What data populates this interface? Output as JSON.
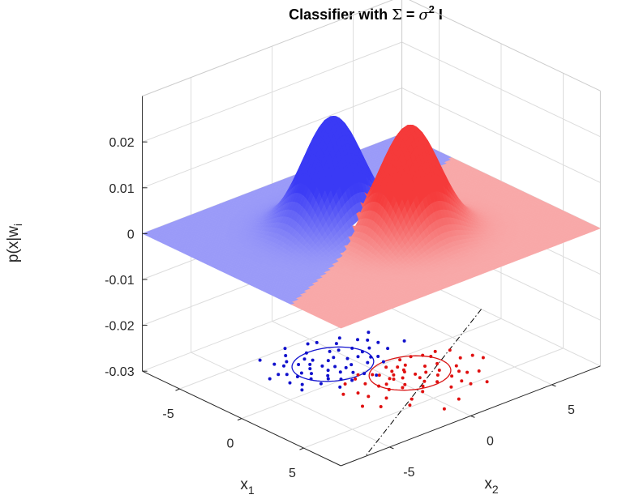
{
  "chart_data": {
    "type": "surface",
    "title_parts": {
      "prefix": "Classifier with ",
      "sigma_upper": "Σ",
      "equals": " = ",
      "sigma_lower": "σ",
      "superscript": "2",
      "suffix": " I"
    },
    "xlabel": {
      "base": "x",
      "sub": "1"
    },
    "ylabel": {
      "base": "x",
      "sub": "2"
    },
    "zlabel": {
      "base": "p(x|w",
      "sub": "i"
    },
    "xlim": [
      -8,
      8
    ],
    "ylim": [
      -8,
      8
    ],
    "zlim": [
      -0.03,
      0.03
    ],
    "x_ticks": [
      {
        "value": -5,
        "label": "-5"
      },
      {
        "value": 0,
        "label": "0"
      },
      {
        "value": 5,
        "label": "5"
      }
    ],
    "y_ticks": [
      {
        "value": -5,
        "label": "-5"
      },
      {
        "value": 0,
        "label": "0"
      },
      {
        "value": 5,
        "label": "5"
      }
    ],
    "z_ticks": [
      {
        "value": -0.03,
        "label": "-0.03"
      },
      {
        "value": -0.02,
        "label": "-0.02"
      },
      {
        "value": -0.01,
        "label": "-0.01"
      },
      {
        "value": 0,
        "label": "0"
      },
      {
        "value": 0.01,
        "label": "0.01"
      },
      {
        "value": 0.02,
        "label": "0.02"
      }
    ],
    "grid": true,
    "classes": [
      {
        "mean": [
          -1.8,
          -1.0
        ],
        "sigma": 1.5,
        "peak": 0.024,
        "surface_color": "#3a3af5",
        "light_color": "#9a9af8",
        "point_color": "#1010cc",
        "contour_color": "#1515d0"
      },
      {
        "mean": [
          1.8,
          1.0
        ],
        "sigma": 1.5,
        "peak": 0.024,
        "surface_color": "#f53a3a",
        "light_color": "#f8a8a8",
        "point_color": "#e01010",
        "contour_color": "#d81515"
      }
    ],
    "contour_radius": 2.0,
    "decision_boundary": {
      "from": [
        -1.6,
        8
      ],
      "to": [
        8,
        -6.5
      ],
      "style": "dash-dot",
      "color": "#000000"
    },
    "samples": {
      "blue": [
        [
          -3.4,
          -2.8
        ],
        [
          -2.9,
          -1.4
        ],
        [
          -3.1,
          -0.2
        ],
        [
          -2.2,
          -2.1
        ],
        [
          -1.4,
          -1.6
        ],
        [
          -2.6,
          0.8
        ],
        [
          -1.1,
          -0.4
        ],
        [
          -3.8,
          -1.1
        ],
        [
          -0.6,
          -2.2
        ],
        [
          -1.9,
          -3.1
        ],
        [
          -0.3,
          -0.9
        ],
        [
          -2.4,
          -0.5
        ],
        [
          -1.6,
          0.4
        ],
        [
          -3.2,
          1.6
        ],
        [
          -0.9,
          1.1
        ],
        [
          -4.3,
          -2.0
        ],
        [
          -2.8,
          -3.6
        ],
        [
          -1.2,
          -2.8
        ],
        [
          -0.1,
          -1.8
        ],
        [
          -2.0,
          1.4
        ],
        [
          -3.6,
          0.6
        ],
        [
          -1.5,
          -1.1
        ],
        [
          -4.6,
          -0.4
        ],
        [
          -0.7,
          0.3
        ],
        [
          -2.6,
          -1.8
        ],
        [
          -1.0,
          -3.5
        ],
        [
          -3.0,
          -2.2
        ],
        [
          -1.8,
          -0.1
        ],
        [
          -2.2,
          2.1
        ],
        [
          0.2,
          -0.6
        ],
        [
          -3.9,
          -3.0
        ],
        [
          -0.4,
          -2.8
        ],
        [
          -1.3,
          2.0
        ],
        [
          -2.9,
          0.2
        ],
        [
          -1.7,
          -2.4
        ],
        [
          -4.0,
          1.1
        ],
        [
          -0.8,
          -1.3
        ],
        [
          -2.3,
          -0.9
        ],
        [
          0.4,
          -1.5
        ],
        [
          -3.3,
          -1.6
        ],
        [
          -1.1,
          0.8
        ],
        [
          -2.7,
          -4.2
        ],
        [
          -5.0,
          -1.5
        ],
        [
          -2.0,
          -1.5
        ],
        [
          -0.5,
          -3.9
        ],
        [
          -1.4,
          3.1
        ],
        [
          -3.5,
          2.5
        ],
        [
          0.6,
          -2.4
        ],
        [
          -2.1,
          -2.7
        ],
        [
          -4.4,
          0.0
        ],
        [
          -1.0,
          -0.8
        ],
        [
          -0.2,
          0.9
        ],
        [
          -3.7,
          -2.4
        ],
        [
          -1.9,
          0.9
        ],
        [
          -2.5,
          -3.3
        ],
        [
          0.8,
          -0.3
        ],
        [
          -4.8,
          -3.2
        ],
        [
          -1.6,
          -3.8
        ],
        [
          -2.8,
          1.9
        ],
        [
          -0.9,
          -2.0
        ]
      ],
      "red": [
        [
          1.4,
          0.3
        ],
        [
          2.3,
          1.6
        ],
        [
          0.6,
          -0.4
        ],
        [
          3.1,
          0.9
        ],
        [
          1.9,
          2.6
        ],
        [
          2.6,
          -0.9
        ],
        [
          0.9,
          1.4
        ],
        [
          3.6,
          2.2
        ],
        [
          1.2,
          -1.3
        ],
        [
          2.0,
          0.4
        ],
        [
          4.0,
          0.1
        ],
        [
          0.3,
          2.2
        ],
        [
          2.8,
          3.1
        ],
        [
          1.6,
          -0.1
        ],
        [
          3.3,
          -1.6
        ],
        [
          0.4,
          0.6
        ],
        [
          2.1,
          1.1
        ],
        [
          4.6,
          1.4
        ],
        [
          1.0,
          2.9
        ],
        [
          2.5,
          -2.1
        ],
        [
          3.8,
          3.0
        ],
        [
          0.1,
          -0.9
        ],
        [
          1.8,
          -2.2
        ],
        [
          3.0,
          1.8
        ],
        [
          4.3,
          -0.8
        ],
        [
          1.3,
          1.0
        ],
        [
          2.6,
          2.2
        ],
        [
          0.7,
          3.4
        ],
        [
          3.5,
          0.5
        ],
        [
          1.9,
          -1.0
        ],
        [
          5.0,
          2.3
        ],
        [
          0.5,
          -2.0
        ],
        [
          2.2,
          3.8
        ],
        [
          3.9,
          -2.4
        ],
        [
          1.5,
          0.9
        ],
        [
          2.9,
          -0.3
        ],
        [
          0.2,
          1.6
        ],
        [
          4.1,
          3.5
        ],
        [
          1.7,
          2.0
        ],
        [
          3.2,
          -3.0
        ],
        [
          6.0,
          0.8
        ],
        [
          2.4,
          4.4
        ],
        [
          0.9,
          -0.2
        ],
        [
          4.8,
          -1.3
        ],
        [
          1.1,
          4.0
        ],
        [
          3.6,
          1.3
        ],
        [
          2.7,
          0.0
        ],
        [
          0.6,
          2.7
        ],
        [
          5.4,
          3.0
        ],
        [
          1.4,
          -2.8
        ],
        [
          2.0,
          -0.6
        ],
        [
          4.4,
          2.2
        ],
        [
          0.8,
          1.0
        ],
        [
          3.0,
          4.6
        ],
        [
          6.4,
          -0.4
        ],
        [
          1.8,
          0.0
        ],
        [
          2.6,
          1.0
        ],
        [
          1.0,
          0.5
        ],
        [
          3.4,
          2.8
        ],
        [
          0.4,
          -1.3
        ]
      ]
    }
  }
}
